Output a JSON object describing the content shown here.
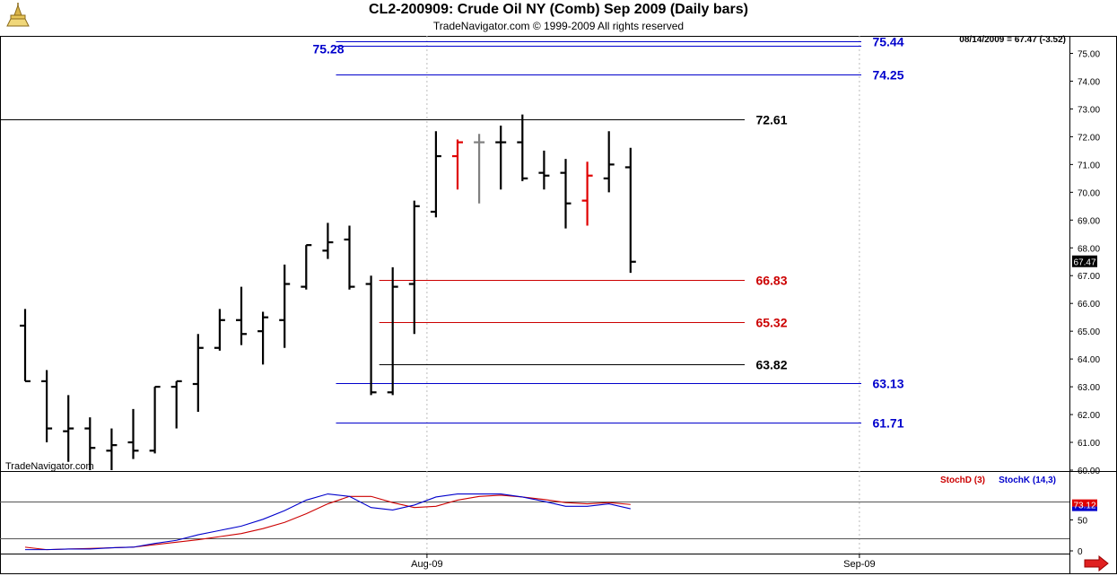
{
  "window": {
    "title": "CL2-200909:  Crude Oil NY (Comb) Sep 2009  (Daily bars)",
    "subtitle": "TradeNavigator.com © 1999-2009 All rights reserved",
    "watermark": "TradeNavigator.com",
    "logo_icon": "tradenavigator-logo-icon",
    "scroll_icon": "scroll-right-arrow-icon"
  },
  "chart_data": [
    {
      "type": "bar",
      "subtype": "ohlc",
      "title": "CL2-200909:  Crude Oil NY (Comb) Sep 2009  (Daily bars)",
      "last_value_note": "08/14/2009 = 67.47 (-3.52)",
      "current_price_label": "67.47",
      "ylim": [
        60.0,
        75.5
      ],
      "y_ticks": [
        "60.00",
        "61.00",
        "62.00",
        "63.00",
        "64.00",
        "65.00",
        "66.00",
        "67.00",
        "68.00",
        "69.00",
        "70.00",
        "71.00",
        "72.00",
        "73.00",
        "74.00",
        "75.00"
      ],
      "x_ticks": [
        {
          "label": "Aug-09",
          "index": 19
        },
        {
          "label": "Sep-09",
          "index": 39
        }
      ],
      "bars": [
        {
          "o": 65.2,
          "h": 65.8,
          "l": 63.2,
          "c": 63.2,
          "color": "black"
        },
        {
          "o": 63.2,
          "h": 63.6,
          "l": 61.0,
          "c": 61.5,
          "color": "black"
        },
        {
          "o": 61.4,
          "h": 62.7,
          "l": 60.3,
          "c": 61.5,
          "color": "black"
        },
        {
          "o": 61.5,
          "h": 61.9,
          "l": 60.0,
          "c": 60.8,
          "color": "black"
        },
        {
          "o": 60.7,
          "h": 61.5,
          "l": 60.0,
          "c": 60.9,
          "color": "black"
        },
        {
          "o": 61.0,
          "h": 62.2,
          "l": 60.4,
          "c": 60.7,
          "color": "black"
        },
        {
          "o": 60.7,
          "h": 63.0,
          "l": 60.6,
          "c": 63.0,
          "color": "black"
        },
        {
          "o": 63.0,
          "h": 63.2,
          "l": 61.5,
          "c": 63.2,
          "color": "black"
        },
        {
          "o": 63.1,
          "h": 64.9,
          "l": 62.1,
          "c": 64.4,
          "color": "black"
        },
        {
          "o": 64.4,
          "h": 65.8,
          "l": 64.3,
          "c": 65.4,
          "color": "black"
        },
        {
          "o": 65.4,
          "h": 66.6,
          "l": 64.5,
          "c": 64.9,
          "color": "black"
        },
        {
          "o": 65.0,
          "h": 65.7,
          "l": 63.8,
          "c": 65.5,
          "color": "black"
        },
        {
          "o": 65.4,
          "h": 67.4,
          "l": 64.4,
          "c": 66.7,
          "color": "black"
        },
        {
          "o": 66.6,
          "h": 68.1,
          "l": 66.5,
          "c": 68.1,
          "color": "black"
        },
        {
          "o": 67.9,
          "h": 68.9,
          "l": 67.6,
          "c": 68.2,
          "color": "black"
        },
        {
          "o": 68.3,
          "h": 68.8,
          "l": 66.5,
          "c": 66.6,
          "color": "black"
        },
        {
          "o": 66.7,
          "h": 67.0,
          "l": 62.7,
          "c": 62.8,
          "color": "black"
        },
        {
          "o": 62.8,
          "h": 67.3,
          "l": 62.7,
          "c": 66.6,
          "color": "black"
        },
        {
          "o": 66.7,
          "h": 69.7,
          "l": 64.9,
          "c": 69.5,
          "color": "black"
        },
        {
          "o": 69.3,
          "h": 72.2,
          "l": 69.1,
          "c": 71.3,
          "color": "black"
        },
        {
          "o": 71.3,
          "h": 71.9,
          "l": 70.1,
          "c": 71.8,
          "color": "red"
        },
        {
          "o": 71.8,
          "h": 72.1,
          "l": 69.6,
          "c": 71.8,
          "color": "gray"
        },
        {
          "o": 71.8,
          "h": 72.4,
          "l": 70.1,
          "c": 71.8,
          "color": "black"
        },
        {
          "o": 71.8,
          "h": 72.8,
          "l": 70.4,
          "c": 70.5,
          "color": "black"
        },
        {
          "o": 70.7,
          "h": 71.5,
          "l": 70.1,
          "c": 70.6,
          "color": "black"
        },
        {
          "o": 70.7,
          "h": 71.2,
          "l": 68.7,
          "c": 69.6,
          "color": "black"
        },
        {
          "o": 69.7,
          "h": 71.1,
          "l": 68.8,
          "c": 70.6,
          "color": "red"
        },
        {
          "o": 70.5,
          "h": 72.2,
          "l": 70.0,
          "c": 71.0,
          "color": "black"
        },
        {
          "o": 70.9,
          "h": 71.6,
          "l": 67.1,
          "c": 67.5,
          "color": "black"
        }
      ],
      "levels": [
        {
          "value": 75.44,
          "label": "75.44",
          "color": "#0000cc",
          "start_index": 15,
          "label_side": "right"
        },
        {
          "value": 75.28,
          "label": "75.28",
          "color": "#0000cc",
          "start_index": 15,
          "label_side": "left"
        },
        {
          "value": 74.25,
          "label": "74.25",
          "color": "#0000cc",
          "start_index": 15,
          "label_side": "right"
        },
        {
          "value": 72.61,
          "label": "72.61",
          "color": "#000000",
          "start_index": 0,
          "label_side": "mid"
        },
        {
          "value": 66.83,
          "label": "66.83",
          "color": "#cc0000",
          "start_index": 17,
          "label_side": "mid"
        },
        {
          "value": 65.32,
          "label": "65.32",
          "color": "#cc0000",
          "start_index": 17,
          "label_side": "mid"
        },
        {
          "value": 63.82,
          "label": "63.82",
          "color": "#000000",
          "start_index": 17,
          "label_side": "mid"
        },
        {
          "value": 63.13,
          "label": "63.13",
          "color": "#0000cc",
          "start_index": 15,
          "label_side": "right"
        },
        {
          "value": 61.71,
          "label": "61.71",
          "color": "#0000cc",
          "start_index": 15,
          "label_side": "right"
        }
      ]
    },
    {
      "type": "line",
      "title": "Stochastics",
      "ylim": [
        0,
        100
      ],
      "y_ticks": [
        "0",
        "50"
      ],
      "reference_lines": [
        20,
        80
      ],
      "current_label": "73.12",
      "series": [
        {
          "name": "StochD (3)",
          "color": "#cc0000",
          "values": [
            6,
            2,
            3,
            4,
            5,
            6,
            10,
            14,
            18,
            23,
            28,
            36,
            46,
            60,
            76,
            88,
            88,
            78,
            70,
            72,
            82,
            88,
            90,
            87,
            83,
            78,
            76,
            78,
            75
          ]
        },
        {
          "name": "StochK (14,3)",
          "color": "#0000cc",
          "values": [
            2,
            2,
            3,
            3,
            5,
            6,
            12,
            17,
            26,
            33,
            40,
            51,
            65,
            82,
            92,
            88,
            70,
            66,
            74,
            87,
            92,
            92,
            92,
            87,
            80,
            72,
            72,
            76,
            68
          ]
        }
      ]
    }
  ]
}
